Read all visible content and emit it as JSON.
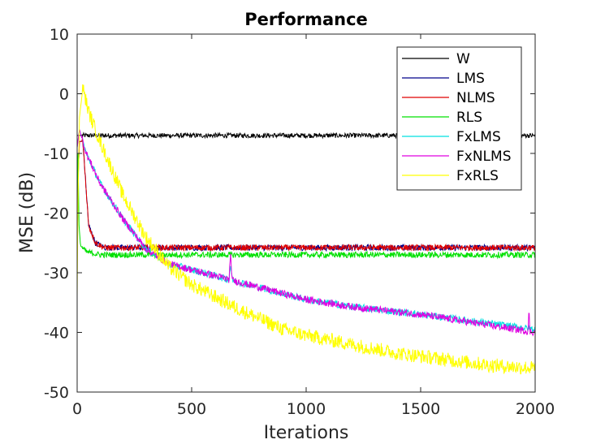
{
  "chart_data": {
    "type": "line",
    "title": "Performance",
    "xlabel": "Iterations",
    "ylabel": "MSE (dB)",
    "xlim": [
      0,
      2000
    ],
    "ylim": [
      -50,
      10
    ],
    "x_ticks": [
      0,
      500,
      1000,
      1500,
      2000
    ],
    "y_ticks": [
      10,
      0,
      -10,
      -20,
      -30,
      -40,
      -50
    ],
    "grid": false,
    "legend_position": "top-right",
    "series": [
      {
        "name": "W",
        "color": "#000000",
        "noise": 0.4,
        "points": [
          [
            0,
            -7
          ],
          [
            2000,
            -7
          ]
        ]
      },
      {
        "name": "LMS",
        "color": "#00008b",
        "noise": 0.5,
        "points": [
          [
            0,
            -26
          ],
          [
            5,
            -13
          ],
          [
            10,
            -8
          ],
          [
            25,
            -8
          ],
          [
            50,
            -22
          ],
          [
            80,
            -25
          ],
          [
            120,
            -25.8
          ],
          [
            2000,
            -25.8
          ]
        ]
      },
      {
        "name": "NLMS",
        "color": "#e00000",
        "noise": 0.5,
        "points": [
          [
            0,
            -26
          ],
          [
            5,
            -13
          ],
          [
            10,
            -8
          ],
          [
            25,
            -8
          ],
          [
            50,
            -22
          ],
          [
            80,
            -25
          ],
          [
            120,
            -25.8
          ],
          [
            2000,
            -25.8
          ]
        ]
      },
      {
        "name": "RLS",
        "color": "#00e000",
        "noise": 0.5,
        "points": [
          [
            0,
            -22
          ],
          [
            3,
            -7
          ],
          [
            8,
            -22
          ],
          [
            15,
            -25.5
          ],
          [
            40,
            -26.5
          ],
          [
            100,
            -27
          ],
          [
            2000,
            -27
          ]
        ]
      },
      {
        "name": "FxLMS",
        "color": "#00e0e0",
        "noise": 0.6,
        "points": [
          [
            0,
            -9
          ],
          [
            10,
            -6
          ],
          [
            40,
            -10
          ],
          [
            100,
            -15
          ],
          [
            200,
            -21
          ],
          [
            300,
            -26
          ],
          [
            400,
            -28.5
          ],
          [
            600,
            -30.5
          ],
          [
            800,
            -32.5
          ],
          [
            1000,
            -34.5
          ],
          [
            1200,
            -35.7
          ],
          [
            1500,
            -37
          ],
          [
            1800,
            -38.5
          ],
          [
            2000,
            -39.5
          ]
        ]
      },
      {
        "name": "FxNLMS",
        "color": "#e000e0",
        "noise": 0.6,
        "points": [
          [
            0,
            -9
          ],
          [
            10,
            -6
          ],
          [
            40,
            -10
          ],
          [
            100,
            -15
          ],
          [
            200,
            -21
          ],
          [
            300,
            -26
          ],
          [
            400,
            -28.5
          ],
          [
            600,
            -30.5
          ],
          [
            800,
            -32.5
          ],
          [
            1000,
            -34.5
          ],
          [
            1200,
            -35.7
          ],
          [
            1500,
            -37
          ],
          [
            1800,
            -38.8
          ],
          [
            2000,
            -40
          ]
        ]
      },
      {
        "name": "FxRLS",
        "color": "#ffff00",
        "noise": 1.2,
        "points": [
          [
            0,
            -34
          ],
          [
            3,
            -20
          ],
          [
            10,
            -4
          ],
          [
            25,
            1
          ],
          [
            50,
            -3
          ],
          [
            100,
            -8
          ],
          [
            200,
            -17
          ],
          [
            300,
            -24
          ],
          [
            400,
            -29
          ],
          [
            500,
            -32
          ],
          [
            700,
            -36
          ],
          [
            900,
            -39.5
          ],
          [
            1000,
            -40.5
          ],
          [
            1200,
            -42
          ],
          [
            1400,
            -43.5
          ],
          [
            1600,
            -44.5
          ],
          [
            1800,
            -45.5
          ],
          [
            2000,
            -46
          ]
        ]
      }
    ]
  }
}
